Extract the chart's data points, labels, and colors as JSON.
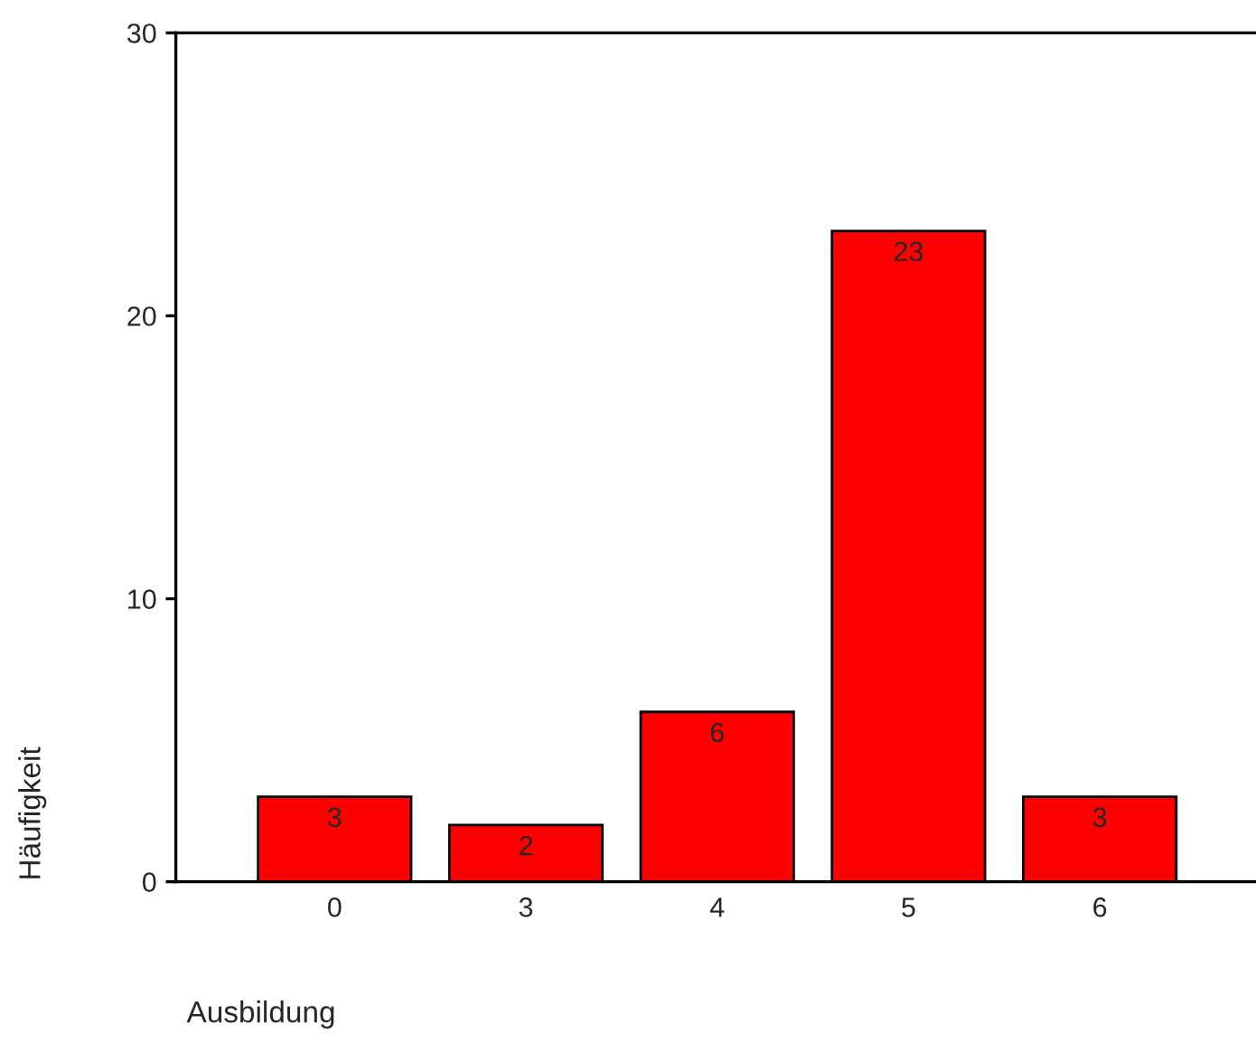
{
  "chart_data": {
    "type": "bar",
    "xlabel": "Ausbildung",
    "ylabel": "Häufigkeit",
    "categories": [
      "0",
      "3",
      "4",
      "5",
      "6"
    ],
    "values": [
      3,
      2,
      6,
      23,
      3
    ],
    "color": "#ff0000",
    "ylim": [
      0,
      30
    ],
    "yticks": [
      0,
      10,
      20,
      30
    ],
    "data_labels": true,
    "grid": false,
    "legend": false
  }
}
